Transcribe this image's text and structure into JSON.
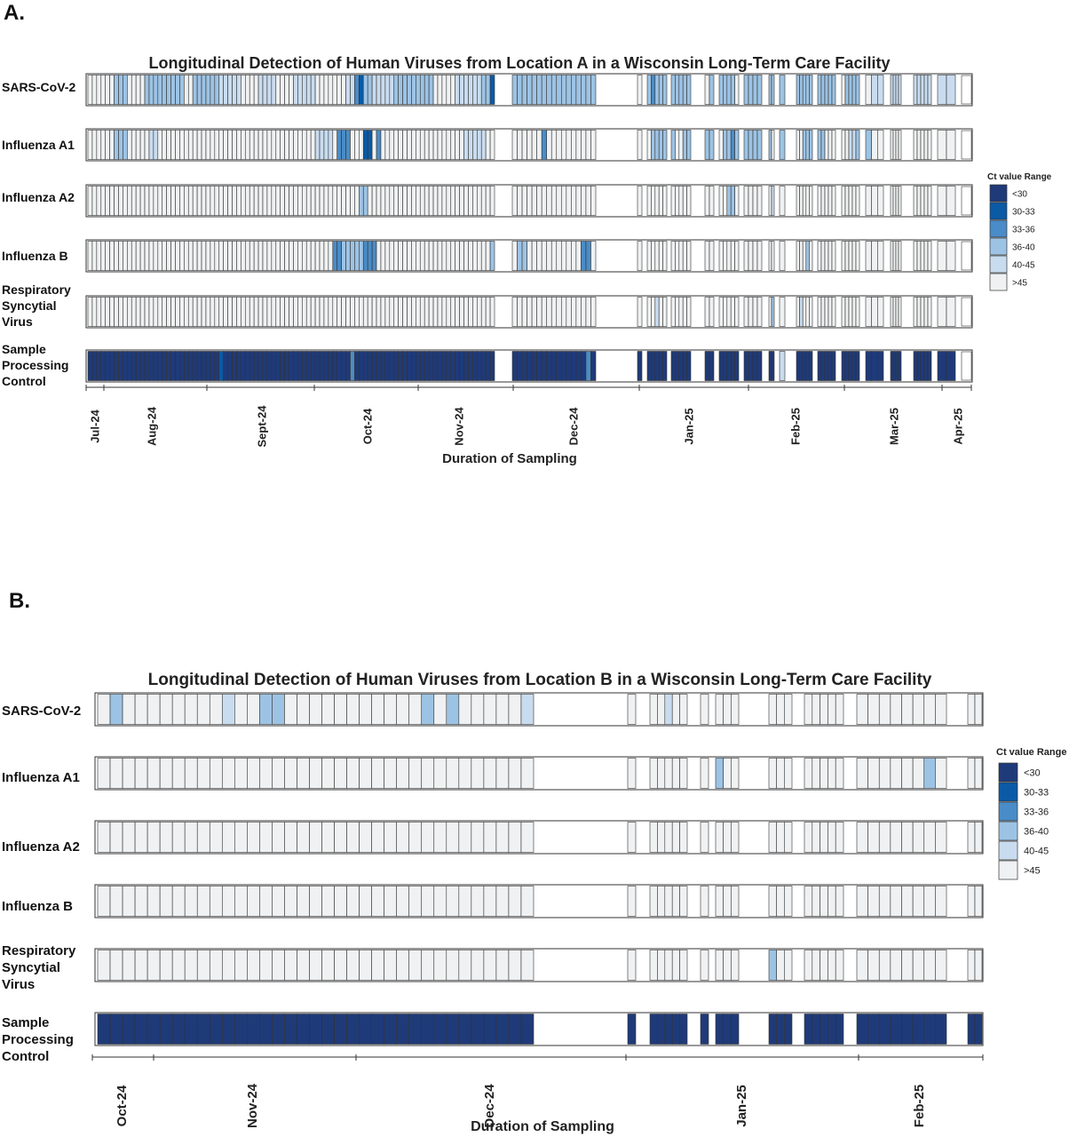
{
  "panels": [
    {
      "panel_label": "A.",
      "title": "Longitudinal Detection of Human Viruses from Location A in a Wisconsin Long-Term Care Facility",
      "xlabel": "Duration of Sampling",
      "rows": [
        {
          "label": [
            "SARS-CoV-2"
          ]
        },
        {
          "label": [
            "Influenza A1"
          ]
        },
        {
          "label": [
            "Influenza A2"
          ]
        },
        {
          "label": [
            "Influenza B"
          ]
        },
        {
          "label": [
            "Respiratory",
            "Syncytial",
            "Virus"
          ]
        },
        {
          "label": [
            "Sample",
            "Processing",
            "Control"
          ]
        }
      ],
      "months": [
        "Jul-24",
        "Aug-24",
        "Sept-24",
        "Oct-24",
        "Nov-24",
        "Dec-24",
        "Jan-25",
        "Feb-25",
        "Mar-25",
        "Apr-25"
      ],
      "legend": {
        "title": "Ct value Range",
        "items": [
          "<30",
          "30-33",
          "33-36",
          "36-40",
          "40-45",
          ">45"
        ]
      }
    },
    {
      "panel_label": "B.",
      "title": "Longitudinal Detection of Human Viruses from Location B in a Wisconsin Long-Term Care Facility",
      "xlabel": "Duration of Sampling",
      "rows": [
        {
          "label": [
            "SARS-CoV-2"
          ]
        },
        {
          "label": [
            "Influenza A1"
          ]
        },
        {
          "label": [
            "Influenza A2"
          ]
        },
        {
          "label": [
            "Influenza B"
          ]
        },
        {
          "label": [
            "Respiratory",
            "Syncytial",
            "Virus"
          ]
        },
        {
          "label": [
            "Sample",
            "Processing",
            "Control"
          ]
        }
      ],
      "months": [
        "Oct-24",
        "Nov-24",
        "Dec-24",
        "Jan-25",
        "Feb-25"
      ],
      "legend": {
        "title": "Ct value Range",
        "items": [
          "<30",
          "30-33",
          "33-36",
          "36-40",
          "40-45",
          ">45"
        ]
      }
    }
  ],
  "colors": {
    "<30": "#1f3a78",
    "30-33": "#0b5aa6",
    "33-36": "#4a8cc7",
    "36-40": "#9dc3e4",
    "40-45": "#c9dcef",
    ">45": "#eff1f2",
    "cell_border": "#333333"
  },
  "chart_data": [
    {
      "type": "heatmap",
      "title": "Longitudinal Detection of Human Viruses from Location A in a Wisconsin Long-Term Care Facility",
      "xlabel": "Duration of Sampling",
      "x_months": [
        "Jul-24",
        "Aug-24",
        "Sept-24",
        "Oct-24",
        "Nov-24",
        "Dec-24",
        "Jan-25",
        "Feb-25",
        "Mar-25",
        "Apr-25"
      ],
      "rows": [
        "SARS-CoV-2",
        "Influenza A1",
        "Influenza A2",
        "Influenza B",
        "Respiratory Syncytial Virus",
        "Sample Processing Control"
      ],
      "category_order": [
        "<30",
        "30-33",
        "33-36",
        "36-40",
        "40-45",
        ">45"
      ],
      "sample_groups": [
        {
          "id": "g1",
          "n_samples": 93
        },
        {
          "id": "g2",
          "n_samples": 17
        },
        {
          "id": "g3",
          "n_samples": 1
        },
        {
          "id": "g4",
          "n_samples": 5
        },
        {
          "id": "g5",
          "n_samples": 5
        },
        {
          "id": "g6",
          "n_samples": 2
        },
        {
          "id": "g7",
          "n_samples": 5
        },
        {
          "id": "g8",
          "n_samples": 4
        },
        {
          "id": "g9",
          "n_samples": 2
        },
        {
          "id": "g10",
          "n_samples": 1
        },
        {
          "id": "g11",
          "n_samples": 5
        },
        {
          "id": "g12",
          "n_samples": 5
        },
        {
          "id": "g13",
          "n_samples": 5
        },
        {
          "id": "g14",
          "n_samples": 3
        },
        {
          "id": "g15",
          "n_samples": 4
        },
        {
          "id": "g16",
          "n_samples": 5
        },
        {
          "id": "g17",
          "n_samples": 2
        }
      ],
      "series": [
        {
          "row": "SARS-CoV-2",
          "default": "40-45",
          "runs": [
            {
              "from": 0,
              "to": 5,
              "value": ">45"
            },
            {
              "from": 6,
              "to": 8,
              "value": "36-40"
            },
            {
              "from": 9,
              "to": 12,
              "value": ">45"
            },
            {
              "from": 13,
              "to": 21,
              "value": "36-40"
            },
            {
              "from": 22,
              "to": 23,
              "value": ">45"
            },
            {
              "from": 24,
              "to": 29,
              "value": "36-40"
            },
            {
              "from": 35,
              "to": 38,
              "value": ">45"
            },
            {
              "from": 43,
              "to": 46,
              "value": ">45"
            },
            {
              "from": 52,
              "to": 58,
              "value": ">45"
            },
            {
              "from": 61,
              "to": 61,
              "value": "33-36"
            },
            {
              "from": 62,
              "to": 62,
              "value": "30-33"
            },
            {
              "from": 63,
              "to": 64,
              "value": "36-40"
            },
            {
              "from": 70,
              "to": 78,
              "value": "36-40"
            },
            {
              "from": 79,
              "to": 83,
              "value": ">45"
            },
            {
              "from": 84,
              "to": 89,
              "value": "40-45"
            },
            {
              "from": 90,
              "to": 91,
              "value": "36-40"
            },
            {
              "from": 92,
              "to": 92,
              "value": "30-33"
            },
            {
              "from": 93,
              "to": 109,
              "value": "36-40"
            },
            {
              "from": 110,
              "to": 110,
              "value": ">45"
            },
            {
              "from": 111,
              "to": 150,
              "value": "36-40"
            },
            {
              "from": 112,
              "to": 112,
              "value": "33-36"
            },
            {
              "from": 121,
              "to": 121,
              "value": ">45"
            },
            {
              "from": 127,
              "to": 127,
              "value": ">45"
            },
            {
              "from": 145,
              "to": 145,
              "value": ">45"
            },
            {
              "from": 150,
              "to": 150,
              "value": ">45"
            }
          ]
        },
        {
          "row": "Influenza A1",
          "default": ">45",
          "runs": [
            {
              "from": 6,
              "to": 8,
              "value": "36-40"
            },
            {
              "from": 14,
              "to": 15,
              "value": "40-45"
            },
            {
              "from": 52,
              "to": 55,
              "value": "40-45"
            },
            {
              "from": 57,
              "to": 59,
              "value": "33-36"
            },
            {
              "from": 63,
              "to": 64,
              "value": "30-33"
            },
            {
              "from": 66,
              "to": 66,
              "value": "33-36"
            },
            {
              "from": 86,
              "to": 90,
              "value": "40-45"
            },
            {
              "from": 99,
              "to": 99,
              "value": "33-36"
            },
            {
              "from": 112,
              "to": 116,
              "value": "36-40"
            },
            {
              "from": 119,
              "to": 122,
              "value": "36-40"
            },
            {
              "from": 124,
              "to": 128,
              "value": "36-40"
            },
            {
              "from": 126,
              "to": 126,
              "value": "33-36"
            },
            {
              "from": 129,
              "to": 132,
              "value": "36-40"
            },
            {
              "from": 134,
              "to": 134,
              "value": "36-40"
            },
            {
              "from": 137,
              "to": 141,
              "value": "36-40"
            },
            {
              "from": 149,
              "to": 150,
              "value": "36-40"
            },
            {
              "from": 147,
              "to": 148,
              "value": "40-45"
            }
          ]
        },
        {
          "row": "Influenza A2",
          "default": ">45",
          "runs": [
            {
              "from": 62,
              "to": 63,
              "value": "36-40"
            },
            {
              "from": 125,
              "to": 126,
              "value": "36-40"
            },
            {
              "from": 133,
              "to": 133,
              "value": "40-45"
            }
          ]
        },
        {
          "row": "Influenza B",
          "default": ">45",
          "runs": [
            {
              "from": 56,
              "to": 57,
              "value": "33-36"
            },
            {
              "from": 58,
              "to": 62,
              "value": "36-40"
            },
            {
              "from": 63,
              "to": 65,
              "value": "33-36"
            },
            {
              "from": 92,
              "to": 92,
              "value": "36-40"
            },
            {
              "from": 94,
              "to": 95,
              "value": "36-40"
            },
            {
              "from": 107,
              "to": 108,
              "value": "33-36"
            },
            {
              "from": 138,
              "to": 138,
              "value": "36-40"
            }
          ]
        },
        {
          "row": "Respiratory Syncytial Virus",
          "default": ">45",
          "runs": [
            {
              "from": 113,
              "to": 113,
              "value": "40-45"
            },
            {
              "from": 133,
              "to": 133,
              "value": "36-40"
            },
            {
              "from": 136,
              "to": 136,
              "value": "40-45"
            }
          ]
        },
        {
          "row": "Sample Processing Control",
          "default": "<30",
          "runs": [
            {
              "from": 30,
              "to": 30,
              "value": "30-33"
            },
            {
              "from": 60,
              "to": 60,
              "value": "33-36"
            },
            {
              "from": 108,
              "to": 108,
              "value": "33-36"
            },
            {
              "from": 134,
              "to": 134,
              "value": "40-45"
            }
          ]
        }
      ]
    },
    {
      "type": "heatmap",
      "title": "Longitudinal Detection of Human Viruses from Location B in a Wisconsin Long-Term Care Facility",
      "xlabel": "Duration of Sampling",
      "x_months": [
        "Oct-24",
        "Nov-24",
        "Dec-24",
        "Jan-25",
        "Feb-25"
      ],
      "rows": [
        "SARS-CoV-2",
        "Influenza A1",
        "Influenza A2",
        "Influenza B",
        "Respiratory Syncytial Virus",
        "Sample Processing Control"
      ],
      "category_order": [
        "<30",
        "30-33",
        "33-36",
        "36-40",
        "40-45",
        ">45"
      ],
      "sample_groups": [
        {
          "id": "g1",
          "n_samples": 35
        },
        {
          "id": "g2",
          "n_samples": 1
        },
        {
          "id": "g3",
          "n_samples": 5
        },
        {
          "id": "g4",
          "n_samples": 1
        },
        {
          "id": "g5",
          "n_samples": 3
        },
        {
          "id": "g6",
          "n_samples": 3
        },
        {
          "id": "g7",
          "n_samples": 5
        },
        {
          "id": "g8",
          "n_samples": 8
        },
        {
          "id": "g9",
          "n_samples": 2
        }
      ],
      "series": [
        {
          "row": "SARS-CoV-2",
          "default": ">45",
          "runs": [
            {
              "from": 1,
              "to": 1,
              "value": "36-40"
            },
            {
              "from": 10,
              "to": 10,
              "value": "40-45"
            },
            {
              "from": 13,
              "to": 13,
              "value": "36-40"
            },
            {
              "from": 14,
              "to": 14,
              "value": "36-40"
            },
            {
              "from": 26,
              "to": 26,
              "value": "36-40"
            },
            {
              "from": 28,
              "to": 28,
              "value": "36-40"
            },
            {
              "from": 34,
              "to": 34,
              "value": "40-45"
            },
            {
              "from": 38,
              "to": 38,
              "value": "40-45"
            }
          ]
        },
        {
          "row": "Influenza A1",
          "default": ">45",
          "runs": [
            {
              "from": 42,
              "to": 42,
              "value": "36-40"
            },
            {
              "from": 59,
              "to": 59,
              "value": "36-40"
            }
          ]
        },
        {
          "row": "Influenza A2",
          "default": ">45",
          "runs": []
        },
        {
          "row": "Influenza B",
          "default": ">45",
          "runs": []
        },
        {
          "row": "Respiratory Syncytial Virus",
          "default": ">45",
          "runs": [
            {
              "from": 45,
              "to": 45,
              "value": "36-40"
            }
          ]
        },
        {
          "row": "Sample Processing Control",
          "default": "<30",
          "runs": []
        }
      ]
    }
  ]
}
